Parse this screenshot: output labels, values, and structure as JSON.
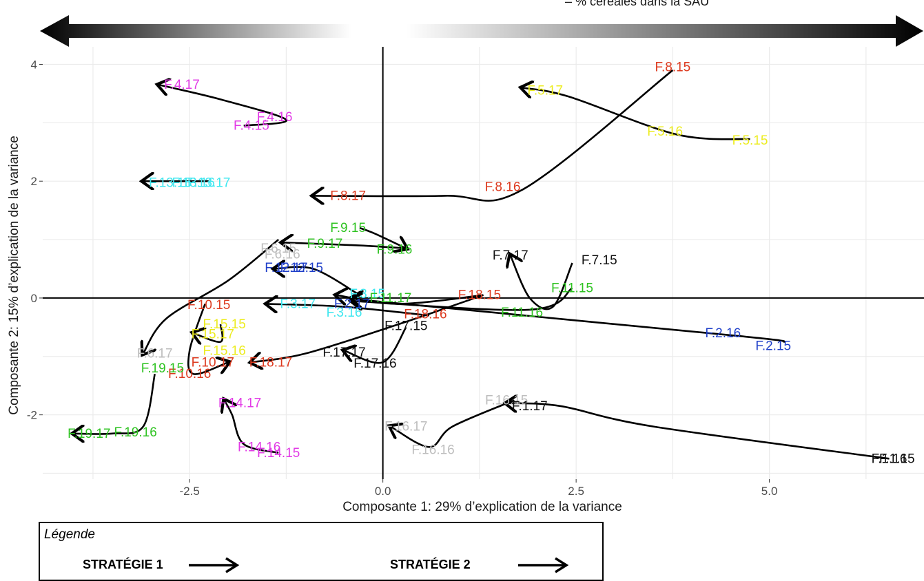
{
  "top_annotation": "– % céréales dans la SAU",
  "legend": {
    "title": "Légende",
    "strategy1": "STRATÉGIE 1",
    "strategy2": "STRATÉGIE 2"
  },
  "colors": {
    "red": "#dd3a1f",
    "yellow": "#ecec1f",
    "magenta": "#e23ae6",
    "cyan": "#3ee7ef",
    "green": "#2fc322",
    "blue": "#1f3fc9",
    "gray": "#bdbdbd",
    "black": "#111111"
  },
  "chart_data": {
    "type": "scatter",
    "xlabel": "Composante 1: 29% d’explication de la variance",
    "ylabel": "Composante 2: 15% d’explication de la variance",
    "xlim": [
      -4.4,
      7.0
    ],
    "ylim": [
      -3.1,
      4.3
    ],
    "xticks": [
      -2.5,
      0.0,
      2.5,
      5.0
    ],
    "xtick_labels": [
      "-2.5",
      "0.0",
      "2.5",
      "5.0"
    ],
    "yticks": [
      -2,
      0,
      2,
      4
    ],
    "ytick_labels": [
      "-2",
      "0",
      "2",
      "4"
    ],
    "grid": true,
    "points": [
      {
        "label": "F.8.15",
        "x": 3.75,
        "y": 3.95,
        "color": "red"
      },
      {
        "label": "F.8.16",
        "x": 1.55,
        "y": 1.9,
        "color": "red"
      },
      {
        "label": "F.8.17",
        "x": -0.45,
        "y": 1.75,
        "color": "red"
      },
      {
        "label": "F.5.17",
        "x": 2.1,
        "y": 3.55,
        "color": "yellow"
      },
      {
        "label": "F.5.16",
        "x": 3.65,
        "y": 2.85,
        "color": "yellow"
      },
      {
        "label": "F.5.15",
        "x": 4.75,
        "y": 2.7,
        "color": "yellow"
      },
      {
        "label": "F.4.17",
        "x": -2.6,
        "y": 3.65,
        "color": "magenta"
      },
      {
        "label": "F.4.16",
        "x": -1.4,
        "y": 3.1,
        "color": "magenta"
      },
      {
        "label": "F.4.15",
        "x": -1.7,
        "y": 2.95,
        "color": "magenta"
      },
      {
        "label": "F.13.15",
        "x": -2.75,
        "y": 1.97,
        "color": "cyan"
      },
      {
        "label": "F.13.16",
        "x": -2.45,
        "y": 1.97,
        "color": "cyan"
      },
      {
        "label": "F.13.17",
        "x": -2.25,
        "y": 1.97,
        "color": "cyan"
      },
      {
        "label": "F.9.15",
        "x": -0.45,
        "y": 1.2,
        "color": "green"
      },
      {
        "label": "F.9.16",
        "x": 0.15,
        "y": 0.83,
        "color": "green"
      },
      {
        "label": "F.9.17",
        "x": -0.75,
        "y": 0.93,
        "color": "green"
      },
      {
        "label": "F.6.15",
        "x": -1.35,
        "y": 0.85,
        "color": "gray"
      },
      {
        "label": "F.6.16",
        "x": -1.3,
        "y": 0.75,
        "color": "gray"
      },
      {
        "label": "F.12.15",
        "x": -1.05,
        "y": 0.52,
        "color": "blue"
      },
      {
        "label": "F.12.17",
        "x": -1.25,
        "y": 0.52,
        "color": "blue"
      },
      {
        "label": "F.7.17",
        "x": 1.65,
        "y": 0.73,
        "color": "black"
      },
      {
        "label": "F.7.15",
        "x": 2.8,
        "y": 0.65,
        "color": "black"
      },
      {
        "label": "F.3.15",
        "x": -0.2,
        "y": 0.07,
        "color": "cyan"
      },
      {
        "label": "F.3.16",
        "x": -0.5,
        "y": -0.25,
        "color": "cyan"
      },
      {
        "label": "F.3.17",
        "x": -1.1,
        "y": -0.1,
        "color": "cyan"
      },
      {
        "label": "F.2.17",
        "x": -0.4,
        "y": -0.1,
        "color": "blue"
      },
      {
        "label": "F.2.16",
        "x": 4.4,
        "y": -0.6,
        "color": "blue"
      },
      {
        "label": "F.2.15",
        "x": 5.05,
        "y": -0.82,
        "color": "blue"
      },
      {
        "label": "F.11.15",
        "x": 2.45,
        "y": 0.17,
        "color": "green"
      },
      {
        "label": "F.11.16",
        "x": 1.8,
        "y": -0.25,
        "color": "green"
      },
      {
        "label": "F.11.17",
        "x": 0.1,
        "y": 0.0,
        "color": "green"
      },
      {
        "label": "F.18.15",
        "x": 1.25,
        "y": 0.05,
        "color": "red"
      },
      {
        "label": "F.18.16",
        "x": 0.55,
        "y": -0.28,
        "color": "red"
      },
      {
        "label": "F.18.17",
        "x": -1.45,
        "y": -1.1,
        "color": "red"
      },
      {
        "label": "F.17.15",
        "x": 0.3,
        "y": -0.48,
        "color": "black"
      },
      {
        "label": "F.17.16",
        "x": -0.1,
        "y": -1.12,
        "color": "black"
      },
      {
        "label": "F.17.17",
        "x": -0.5,
        "y": -0.93,
        "color": "black"
      },
      {
        "label": "F.10.15",
        "x": -2.25,
        "y": -0.12,
        "color": "red"
      },
      {
        "label": "F.10.16",
        "x": -2.5,
        "y": -1.3,
        "color": "red"
      },
      {
        "label": "F.10.17",
        "x": -2.2,
        "y": -1.1,
        "color": "red"
      },
      {
        "label": "F.15.15",
        "x": -2.05,
        "y": -0.45,
        "color": "yellow"
      },
      {
        "label": "F.15.16",
        "x": -2.05,
        "y": -0.9,
        "color": "yellow"
      },
      {
        "label": "F.15.17",
        "x": -2.2,
        "y": -0.62,
        "color": "yellow"
      },
      {
        "label": "F.6.17",
        "x": -2.95,
        "y": -0.95,
        "color": "gray"
      },
      {
        "label": "F.19.15",
        "x": -2.85,
        "y": -1.2,
        "color": "green"
      },
      {
        "label": "F.19.16",
        "x": -3.2,
        "y": -2.3,
        "color": "green"
      },
      {
        "label": "F.19.17",
        "x": -3.8,
        "y": -2.32,
        "color": "green"
      },
      {
        "label": "F.14.17",
        "x": -1.85,
        "y": -1.8,
        "color": "magenta"
      },
      {
        "label": "F.14.16",
        "x": -1.6,
        "y": -2.55,
        "color": "magenta"
      },
      {
        "label": "F.14.15",
        "x": -1.35,
        "y": -2.65,
        "color": "magenta"
      },
      {
        "label": "F.16.15",
        "x": 1.6,
        "y": -1.75,
        "color": "gray"
      },
      {
        "label": "F.16.16",
        "x": 0.65,
        "y": -2.6,
        "color": "gray"
      },
      {
        "label": "F.16.17",
        "x": 0.3,
        "y": -2.2,
        "color": "gray"
      },
      {
        "label": "F.1.17",
        "x": 1.9,
        "y": -1.85,
        "color": "black"
      },
      {
        "label": "F.1.16",
        "x": 6.55,
        "y": -2.75,
        "color": "black"
      },
      {
        "label": "F.1.15",
        "x": 6.65,
        "y": -2.75,
        "color": "black"
      }
    ],
    "trajectories": [
      [
        [
          3.75,
          3.9
        ],
        [
          1.8,
          1.85
        ],
        [
          0.8,
          1.75
        ],
        [
          -0.9,
          1.75
        ]
      ],
      [
        [
          4.75,
          2.72
        ],
        [
          3.8,
          2.8
        ],
        [
          2.4,
          3.45
        ],
        [
          1.8,
          3.6
        ]
      ],
      [
        [
          -1.8,
          2.95
        ],
        [
          -1.25,
          3.05
        ],
        [
          -2.1,
          3.4
        ],
        [
          -2.9,
          3.65
        ]
      ],
      [
        [
          -2.25,
          2.0
        ],
        [
          -2.6,
          2.0
        ],
        [
          -3.1,
          2.0
        ]
      ],
      [
        [
          0.3,
          0.85
        ],
        [
          -0.3,
          0.9
        ],
        [
          -1.3,
          0.95
        ]
      ],
      [
        [
          -0.3,
          1.2
        ],
        [
          -0.1,
          1.1
        ],
        [
          0.3,
          0.85
        ]
      ],
      [
        [
          -1.35,
          1.0
        ],
        [
          -2.0,
          0.3
        ],
        [
          -2.8,
          -0.35
        ],
        [
          -3.1,
          -0.95
        ]
      ],
      [
        [
          -0.3,
          0.05
        ],
        [
          -0.9,
          0.5
        ],
        [
          -1.4,
          0.5
        ]
      ],
      [
        [
          5.2,
          -0.75
        ],
        [
          4.6,
          -0.65
        ],
        [
          0.1,
          -0.08
        ],
        [
          -0.4,
          0.0
        ]
      ],
      [
        [
          2.45,
          0.6
        ],
        [
          2.2,
          -0.15
        ],
        [
          1.9,
          0.0
        ],
        [
          1.65,
          0.73
        ]
      ],
      [
        [
          2.45,
          0.17
        ],
        [
          1.9,
          -0.2
        ],
        [
          -0.4,
          -0.05
        ]
      ],
      [
        [
          1.3,
          0.05
        ],
        [
          0.2,
          -0.1
        ],
        [
          -0.6,
          0.05
        ]
      ],
      [
        [
          0.6,
          -0.3
        ],
        [
          -0.5,
          -0.15
        ],
        [
          -1.5,
          -0.1
        ]
      ],
      [
        [
          1.3,
          0.05
        ],
        [
          0.2,
          -0.45
        ],
        [
          -1.0,
          -0.95
        ],
        [
          -1.7,
          -1.1
        ]
      ],
      [
        [
          0.3,
          -0.5
        ],
        [
          0.0,
          -1.1
        ],
        [
          -0.5,
          -0.9
        ]
      ],
      [
        [
          -2.3,
          -0.1
        ],
        [
          -2.5,
          -0.9
        ],
        [
          -2.45,
          -1.3
        ],
        [
          -2.0,
          -1.1
        ]
      ],
      [
        [
          -2.1,
          -0.45
        ],
        [
          -2.1,
          -0.75
        ],
        [
          -2.45,
          -0.6
        ]
      ],
      [
        [
          -2.95,
          -1.3
        ],
        [
          -3.1,
          -2.2
        ],
        [
          -3.5,
          -2.32
        ],
        [
          -4.0,
          -2.32
        ]
      ],
      [
        [
          -1.35,
          -2.65
        ],
        [
          -1.8,
          -2.5
        ],
        [
          -1.95,
          -2.0
        ],
        [
          -2.05,
          -1.75
        ]
      ],
      [
        [
          1.7,
          -1.75
        ],
        [
          0.9,
          -2.2
        ],
        [
          0.6,
          -2.55
        ],
        [
          0.1,
          -2.2
        ]
      ],
      [
        [
          6.55,
          -2.75
        ],
        [
          3.5,
          -2.2
        ],
        [
          2.3,
          -1.85
        ],
        [
          1.6,
          -1.8
        ]
      ]
    ]
  }
}
